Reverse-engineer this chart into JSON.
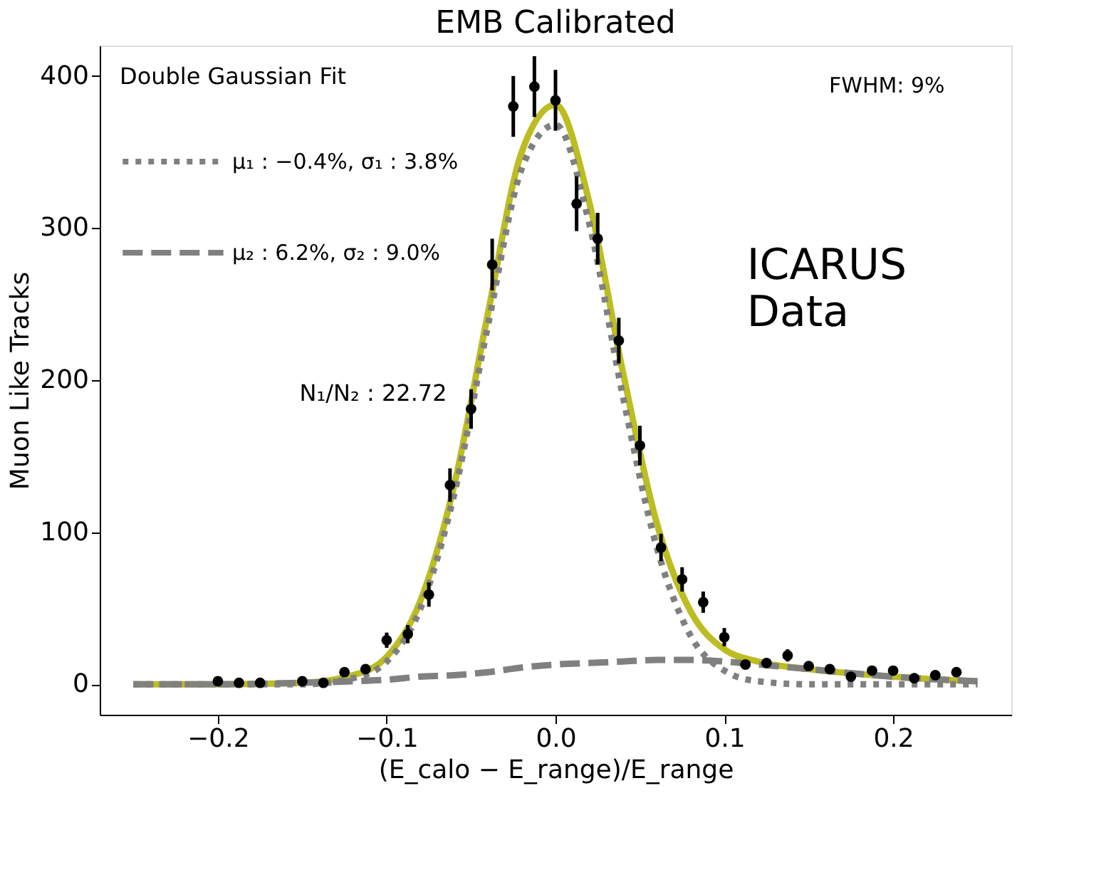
{
  "chart_data": {
    "type": "scatter",
    "title": "EMB Calibrated",
    "xlabel": "(E_calo − E_range)/E_range",
    "ylabel": "Muon Like Tracks",
    "legend_title": "Double Gaussian Fit",
    "legend": "top left",
    "grid": false,
    "annotations": [
      "N₁/N₂ : 22.72",
      "FWHM: 9%",
      "ICARUS\nData"
    ],
    "xlim": [
      -0.27,
      0.27
    ],
    "ylim": [
      -20,
      420
    ],
    "xticks": [
      {
        "value": -0.2,
        "label": "−0.2"
      },
      {
        "value": -0.1,
        "label": "−0.1"
      },
      {
        "value": 0,
        "label": "0.0"
      },
      0.1,
      0.2
    ],
    "yticks": [
      0,
      100,
      200,
      300,
      400
    ],
    "series": [
      {
        "type": "line",
        "color": "#bcbd22",
        "line_style": "solid",
        "x": [
          -0.25,
          -0.2,
          -0.15,
          -0.12,
          -0.1,
          -0.08,
          -0.06,
          -0.04,
          -0.02,
          0,
          0.02,
          0.04,
          0.06,
          0.08,
          0.1,
          0.12,
          0.15,
          0.2,
          0.25
        ],
        "values": [
          0,
          0,
          1,
          6,
          18,
          55,
          131,
          244,
          350,
          381,
          317,
          205,
          106,
          48,
          23,
          15,
          10,
          5,
          2
        ]
      },
      {
        "type": "line",
        "name": "μ₁ : −0.4%, σ₁ : 3.8%",
        "color": "#808080",
        "line_style": "dotted",
        "x": [
          -0.25,
          -0.2,
          -0.15,
          -0.12,
          -0.1,
          -0.08,
          -0.06,
          -0.04,
          -0.02,
          0,
          0.02,
          0.04,
          0.06,
          0.08,
          0.1,
          0.12,
          0.15,
          0.2,
          0.25
        ],
        "values": [
          0,
          0,
          0,
          4,
          15,
          50,
          125,
          236,
          339,
          368,
          303,
          189,
          90,
          32,
          9,
          2,
          0,
          0,
          0
        ]
      },
      {
        "type": "line",
        "name": "μ₂ : 6.2%, σ₂ : 9.0%",
        "color": "#808080",
        "line_style": "dashed",
        "x": [
          -0.25,
          -0.2,
          -0.15,
          -0.12,
          -0.1,
          -0.08,
          -0.06,
          -0.04,
          -0.02,
          0,
          0.02,
          0.04,
          0.06,
          0.08,
          0.1,
          0.12,
          0.15,
          0.2,
          0.25
        ],
        "values": [
          0,
          0,
          1,
          2,
          3,
          5,
          6,
          8,
          11,
          13,
          14,
          15,
          16,
          16,
          15,
          13,
          10,
          5,
          2
        ]
      },
      {
        "color": "#000000",
        "marker": "circle",
        "x": [
          -0.2,
          -0.1875,
          -0.175,
          -0.15,
          -0.1375,
          -0.125,
          -0.1125,
          -0.1,
          -0.0875,
          -0.075,
          -0.0625,
          -0.05,
          -0.0375,
          -0.025,
          -0.0125,
          0,
          0.0125,
          0.025,
          0.0375,
          0.05,
          0.0625,
          0.075,
          0.0875,
          0.1,
          0.1125,
          0.125,
          0.1375,
          0.15,
          0.1625,
          0.175,
          0.1875,
          0.2,
          0.2125,
          0.225,
          0.2375
        ],
        "values": [
          2,
          1,
          1,
          2,
          1,
          8,
          10,
          29,
          33,
          59,
          131,
          181,
          276,
          380,
          393,
          384,
          316,
          293,
          226,
          157,
          90,
          69,
          54,
          31,
          13,
          14,
          19,
          12,
          10,
          5,
          9,
          9,
          4,
          6,
          8
        ],
        "errors": [
          null,
          null,
          null,
          null,
          null,
          null,
          null,
          5,
          6,
          8,
          11,
          13,
          17,
          20,
          20,
          20,
          18,
          17,
          15,
          13,
          9,
          8,
          7,
          6,
          null,
          null,
          4,
          null,
          null,
          null,
          null,
          null,
          null,
          null,
          null
        ]
      }
    ]
  }
}
